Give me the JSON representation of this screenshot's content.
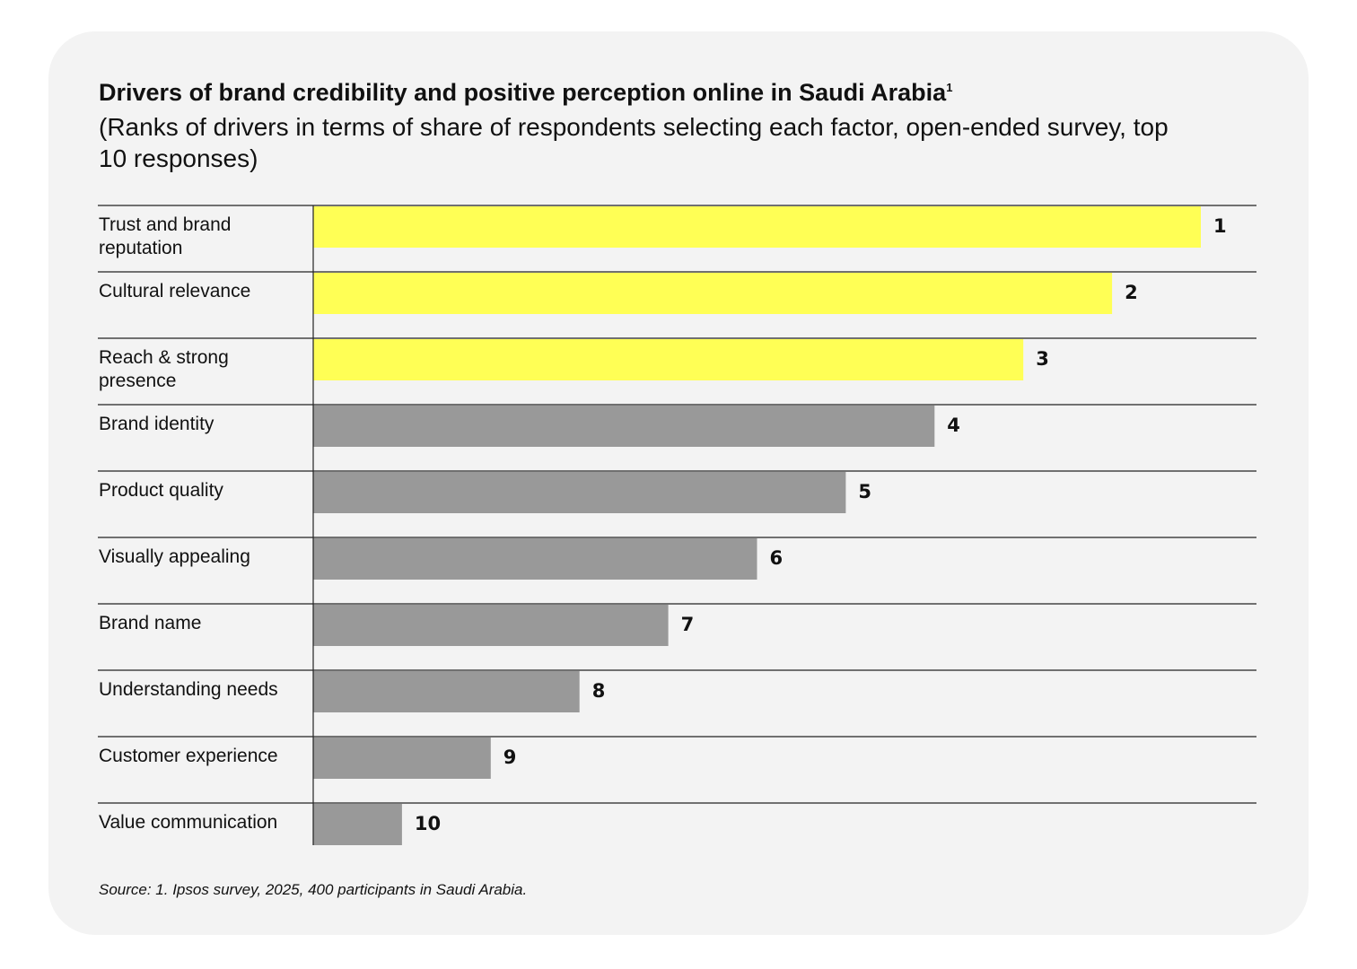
{
  "title": "Drivers of brand credibility and positive perception online in Saudi Arabia",
  "title_footnote": "1",
  "subtitle": "(Ranks of drivers in terms of share of respondents selecting each factor, open-ended survey, top 10 responses)",
  "source": "Source: 1. Ipsos survey, 2025, 400 participants in Saudi Arabia.",
  "colors": {
    "highlight": "#ffff55",
    "default": "#999999",
    "card": "#f3f3f3",
    "text": "#111111"
  },
  "chart_data": {
    "type": "bar",
    "orientation": "horizontal",
    "categories": [
      "Trust and brand reputation",
      "Cultural relevance",
      "Reach & strong presence",
      "Brand identity",
      "Product quality",
      "Visually appealing",
      "Brand name",
      "Understanding needs",
      "Customer experience",
      "Value communication"
    ],
    "category_lines": [
      [
        "Trust and brand",
        "reputation"
      ],
      [
        "Cultural relevance"
      ],
      [
        "Reach & strong",
        "presence"
      ],
      [
        "Brand identity"
      ],
      [
        "Product quality"
      ],
      [
        "Visually appealing"
      ],
      [
        "Brand name"
      ],
      [
        "Understanding needs"
      ],
      [
        "Customer experience"
      ],
      [
        "Value communication"
      ]
    ],
    "values": [
      10,
      9,
      8,
      7,
      6,
      5,
      4,
      3,
      2,
      1
    ],
    "data_labels": [
      "1",
      "2",
      "3",
      "4",
      "5",
      "6",
      "7",
      "8",
      "9",
      "10"
    ],
    "highlighted": [
      true,
      true,
      true,
      false,
      false,
      false,
      false,
      false,
      false,
      false
    ],
    "xlim": [
      0,
      10
    ],
    "grid": false,
    "title": "Drivers of brand credibility and positive perception online in Saudi Arabia",
    "xlabel": "",
    "ylabel": ""
  }
}
